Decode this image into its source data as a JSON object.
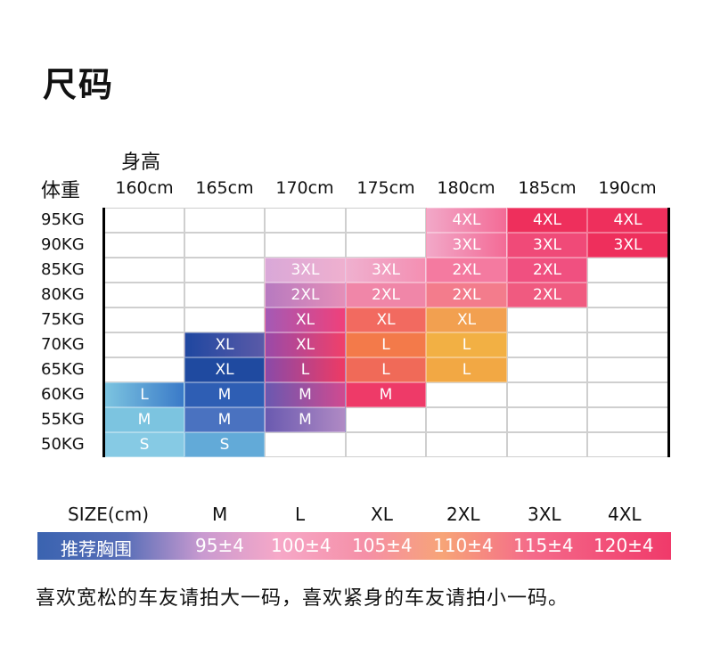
{
  "title": "尺码",
  "height_label": "身高",
  "weight_label": "体重",
  "heights": [
    "160cm",
    "165cm",
    "170cm",
    "175cm",
    "180cm",
    "185cm",
    "190cm"
  ],
  "weights": [
    "95KG",
    "90KG",
    "85KG",
    "80KG",
    "75KG",
    "70KG",
    "65KG",
    "60KG",
    "55KG",
    "50KG"
  ],
  "grid": [
    [
      "",
      "",
      "",
      "",
      "4XL",
      "4XL",
      "4XL"
    ],
    [
      "",
      "",
      "",
      "",
      "3XL",
      "3XL",
      "3XL"
    ],
    [
      "",
      "",
      "3XL",
      "3XL",
      "2XL",
      "2XL",
      ""
    ],
    [
      "",
      "",
      "2XL",
      "2XL",
      "2XL",
      "2XL",
      ""
    ],
    [
      "",
      "",
      "XL",
      "XL",
      "XL",
      "",
      ""
    ],
    [
      "",
      "XL",
      "XL",
      "L",
      "L",
      "",
      ""
    ],
    [
      "",
      "XL",
      "L",
      "L",
      "L",
      "",
      ""
    ],
    [
      "L",
      "M",
      "M",
      "M",
      "",
      "",
      ""
    ],
    [
      "M",
      "M",
      "M",
      "",
      "",
      "",
      ""
    ],
    [
      "S",
      "S",
      "",
      "",
      "",
      "",
      ""
    ]
  ],
  "colors": {
    "S": "#7cc4e0",
    "M_cool": "#4a7fc8",
    "XL_deep": "#1f47a0",
    "L_warm": "#f5a94a",
    "pink": "#f05a8a",
    "red": "#ee2f5c",
    "light_pink": "#f2a8c8"
  },
  "size_row": {
    "label": "SIZE(cm)",
    "sizes": [
      "M",
      "L",
      "XL",
      "2XL",
      "3XL",
      "4XL"
    ]
  },
  "chest": {
    "label": "推荐胸围",
    "values": [
      "95±4",
      "100±4",
      "105±4",
      "110±4",
      "115±4",
      "120±4"
    ]
  },
  "note": "喜欢宽松的车友请拍大一码，喜欢紧身的车友请拍小一码。"
}
